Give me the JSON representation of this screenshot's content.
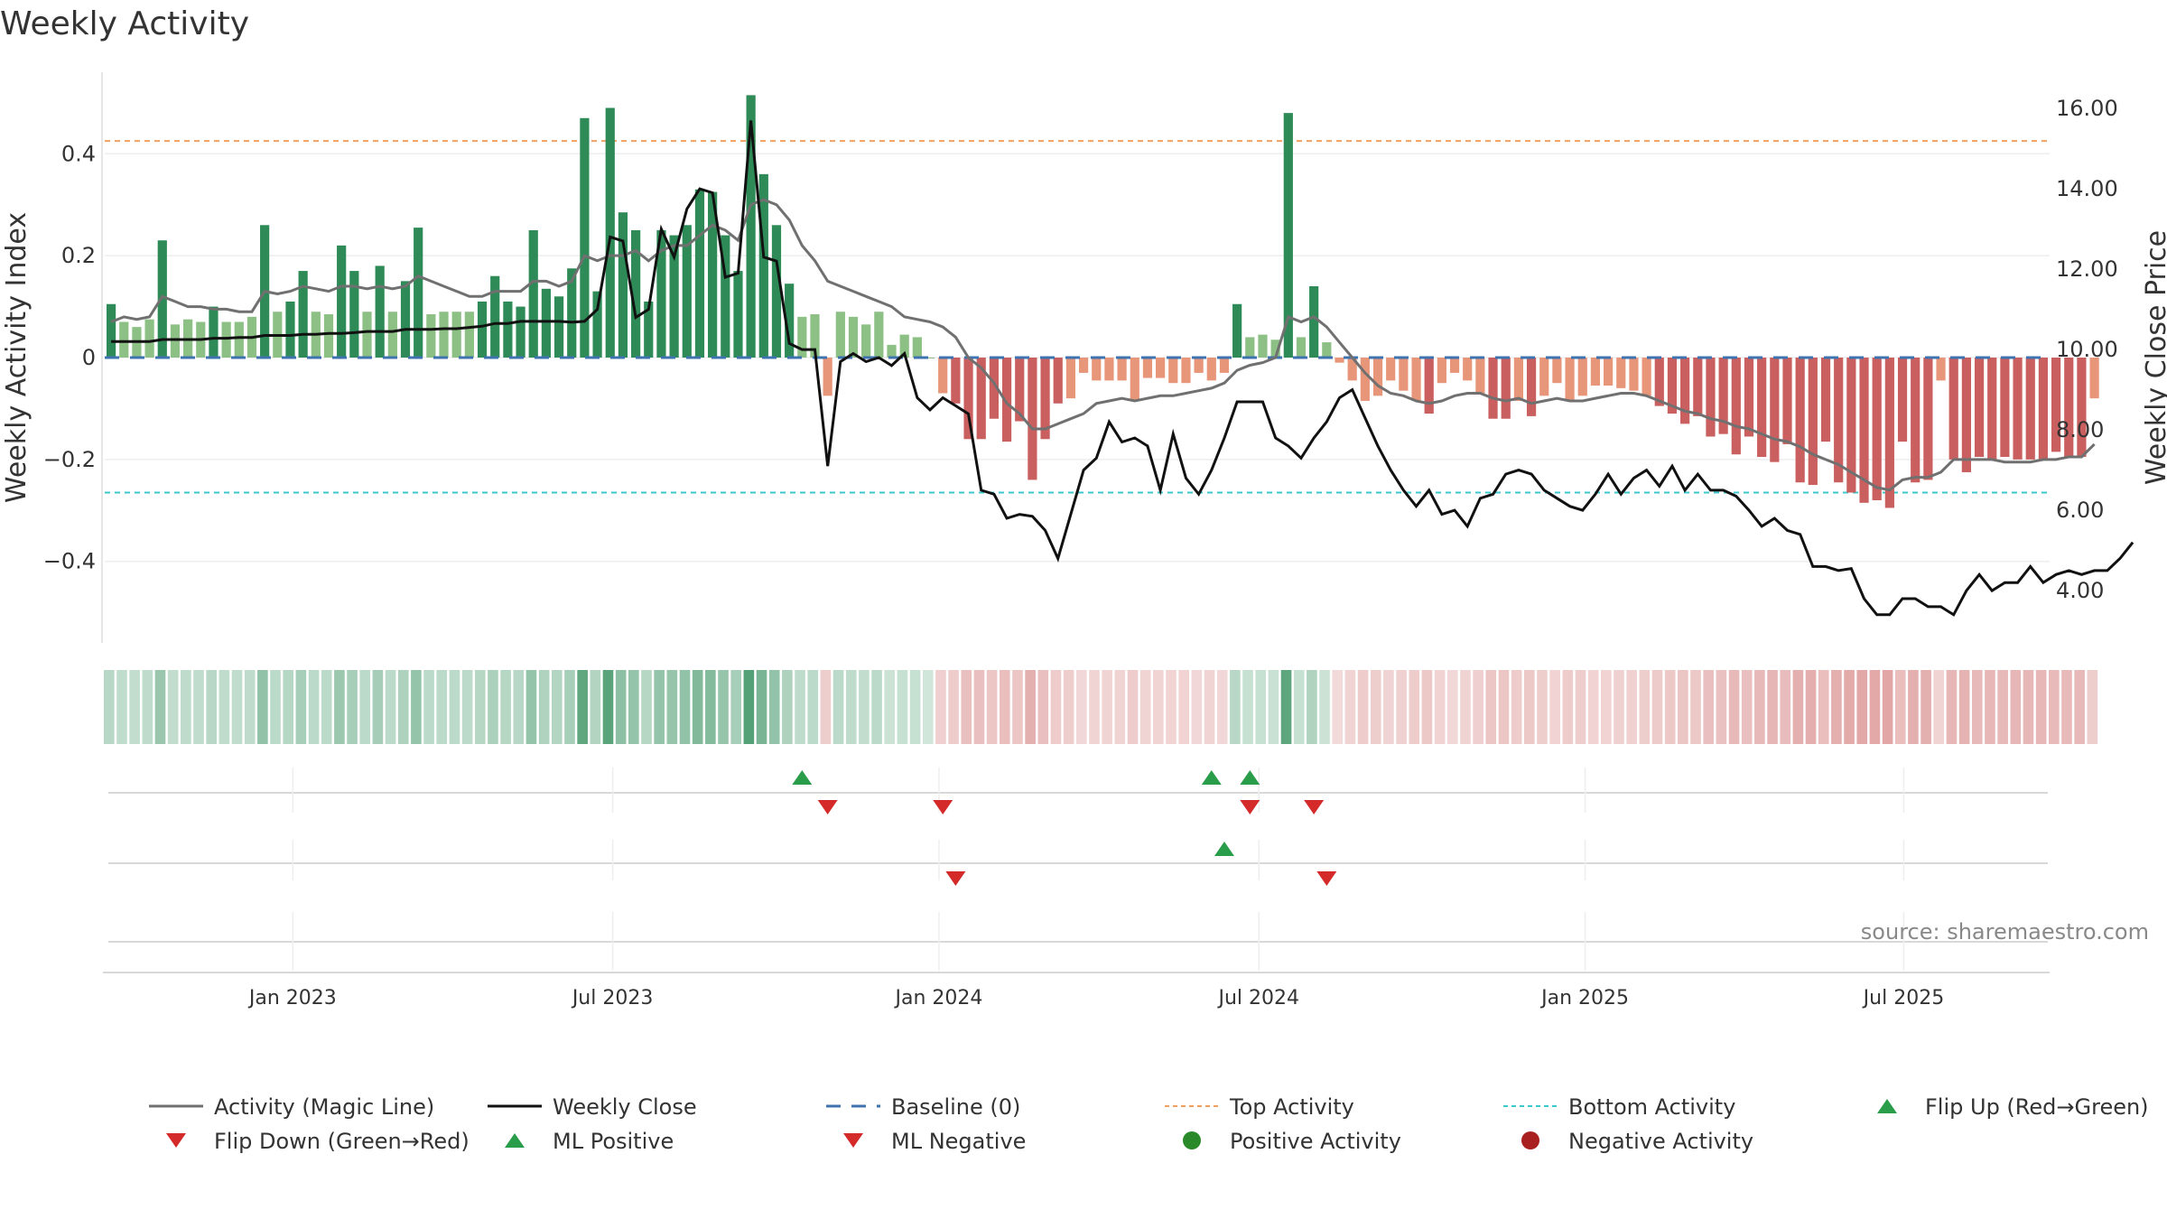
{
  "chart_data": {
    "type": "bar",
    "title": "Weekly Activity",
    "ylabel_left": "Weekly Activity Index",
    "ylabel_right": "Weekly Close Price",
    "left_axis": {
      "range": [
        -0.56,
        0.56
      ],
      "ticks": [
        0.4,
        0.2,
        0,
        -0.2,
        -0.4
      ],
      "tick_labels": [
        "0.4",
        "0.2",
        "0",
        "−0.2",
        "−0.4"
      ]
    },
    "right_axis": {
      "range": [
        2.7,
        16.9
      ],
      "ticks": [
        16,
        14,
        12,
        10,
        8,
        6,
        4
      ],
      "tick_labels": [
        "16.00",
        "14.00",
        "12.00",
        "10.00",
        "8.00",
        "6.00",
        "4.00"
      ]
    },
    "x_range": [
      0,
      151
    ],
    "x_ticks": [
      {
        "label": "Jan 2023",
        "week": 14.7
      },
      {
        "label": "Jul 2023",
        "week": 39.7
      },
      {
        "label": "Jan 2024",
        "week": 65.2
      },
      {
        "label": "Jul 2024",
        "week": 90.2
      },
      {
        "label": "Jan 2025",
        "week": 115.7
      },
      {
        "label": "Jul 2025",
        "week": 140.6
      }
    ],
    "reference_lines": {
      "baseline": 0,
      "top_activity": 0.425,
      "bottom_activity": -0.265
    },
    "activity_index": [
      0.105,
      0.07,
      0.06,
      0.075,
      0.23,
      0.065,
      0.075,
      0.07,
      0.1,
      0.07,
      0.07,
      0.08,
      0.26,
      0.09,
      0.11,
      0.17,
      0.09,
      0.085,
      0.22,
      0.17,
      0.09,
      0.18,
      0.09,
      0.15,
      0.255,
      0.085,
      0.09,
      0.09,
      0.09,
      0.11,
      0.16,
      0.11,
      0.1,
      0.25,
      0.135,
      0.12,
      0.175,
      0.47,
      0.13,
      0.49,
      0.285,
      0.25,
      0.11,
      0.25,
      0.24,
      0.26,
      0.33,
      0.325,
      0.24,
      0.17,
      0.515,
      0.36,
      0.26,
      0.145,
      0.08,
      0.085,
      -0.075,
      0.09,
      0.08,
      0.065,
      0.09,
      0.025,
      0.045,
      0.04,
      0.0,
      -0.07,
      -0.09,
      -0.16,
      -0.16,
      -0.12,
      -0.165,
      -0.125,
      -0.24,
      -0.16,
      -0.09,
      -0.08,
      -0.03,
      -0.045,
      -0.045,
      -0.045,
      -0.085,
      -0.04,
      -0.04,
      -0.05,
      -0.05,
      -0.03,
      -0.045,
      -0.03,
      0.105,
      0.04,
      0.045,
      0.035,
      0.48,
      0.04,
      0.14,
      0.03,
      -0.01,
      -0.045,
      -0.085,
      -0.075,
      -0.045,
      -0.065,
      -0.085,
      -0.11,
      -0.05,
      -0.03,
      -0.045,
      -0.07,
      -0.12,
      -0.12,
      -0.085,
      -0.115,
      -0.075,
      -0.05,
      -0.085,
      -0.075,
      -0.055,
      -0.055,
      -0.06,
      -0.065,
      -0.075,
      -0.095,
      -0.11,
      -0.13,
      -0.115,
      -0.155,
      -0.15,
      -0.19,
      -0.155,
      -0.195,
      -0.205,
      -0.17,
      -0.245,
      -0.25,
      -0.165,
      -0.245,
      -0.265,
      -0.285,
      -0.28,
      -0.295,
      -0.165,
      -0.245,
      -0.24,
      -0.045,
      -0.2,
      -0.225,
      -0.195,
      -0.2,
      -0.195,
      -0.2,
      -0.2,
      -0.2,
      -0.185,
      -0.195,
      -0.195,
      -0.08
    ],
    "magic_line": [
      0.07,
      0.08,
      0.075,
      0.08,
      0.12,
      0.11,
      0.1,
      0.1,
      0.095,
      0.095,
      0.09,
      0.09,
      0.13,
      0.125,
      0.13,
      0.14,
      0.135,
      0.13,
      0.14,
      0.14,
      0.135,
      0.14,
      0.135,
      0.14,
      0.16,
      0.15,
      0.14,
      0.13,
      0.12,
      0.12,
      0.13,
      0.13,
      0.13,
      0.15,
      0.15,
      0.14,
      0.15,
      0.2,
      0.19,
      0.2,
      0.2,
      0.21,
      0.19,
      0.21,
      0.22,
      0.22,
      0.24,
      0.26,
      0.25,
      0.23,
      0.3,
      0.31,
      0.3,
      0.27,
      0.22,
      0.19,
      0.15,
      0.14,
      0.13,
      0.12,
      0.11,
      0.1,
      0.08,
      0.075,
      0.07,
      0.06,
      0.04,
      0.0,
      -0.02,
      -0.05,
      -0.09,
      -0.11,
      -0.14,
      -0.14,
      -0.13,
      -0.12,
      -0.11,
      -0.09,
      -0.085,
      -0.08,
      -0.085,
      -0.08,
      -0.075,
      -0.075,
      -0.07,
      -0.065,
      -0.06,
      -0.05,
      -0.025,
      -0.015,
      -0.01,
      0.0,
      0.08,
      0.07,
      0.08,
      0.06,
      0.03,
      0.0,
      -0.03,
      -0.055,
      -0.07,
      -0.075,
      -0.085,
      -0.09,
      -0.085,
      -0.075,
      -0.07,
      -0.07,
      -0.08,
      -0.085,
      -0.08,
      -0.09,
      -0.085,
      -0.08,
      -0.085,
      -0.085,
      -0.08,
      -0.075,
      -0.07,
      -0.07,
      -0.075,
      -0.085,
      -0.095,
      -0.105,
      -0.11,
      -0.12,
      -0.125,
      -0.135,
      -0.14,
      -0.15,
      -0.16,
      -0.165,
      -0.175,
      -0.19,
      -0.2,
      -0.21,
      -0.225,
      -0.24,
      -0.255,
      -0.26,
      -0.24,
      -0.235,
      -0.235,
      -0.225,
      -0.2,
      -0.2,
      -0.2,
      -0.2,
      -0.205,
      -0.205,
      -0.205,
      -0.2,
      -0.2,
      -0.195,
      -0.195,
      -0.17
    ],
    "weekly_close": [
      10.2,
      10.2,
      10.2,
      10.2,
      10.25,
      10.25,
      10.25,
      10.25,
      10.28,
      10.28,
      10.3,
      10.3,
      10.35,
      10.35,
      10.35,
      10.38,
      10.38,
      10.4,
      10.4,
      10.42,
      10.45,
      10.45,
      10.45,
      10.5,
      10.5,
      10.5,
      10.52,
      10.52,
      10.55,
      10.58,
      10.65,
      10.65,
      10.7,
      10.7,
      10.7,
      10.7,
      10.68,
      10.7,
      11.0,
      12.8,
      12.7,
      10.8,
      11.0,
      13.0,
      12.3,
      13.5,
      14.0,
      13.9,
      11.8,
      11.9,
      15.7,
      12.3,
      12.2,
      10.15,
      10.0,
      10.0,
      7.1,
      9.7,
      9.9,
      9.7,
      9.8,
      9.6,
      9.9,
      8.8,
      8.5,
      8.8,
      8.6,
      8.4,
      6.5,
      6.4,
      5.8,
      5.9,
      5.85,
      5.5,
      4.8,
      5.9,
      7.0,
      7.3,
      8.2,
      7.7,
      7.8,
      7.6,
      6.5,
      7.9,
      6.8,
      6.4,
      7.0,
      7.8,
      8.7,
      8.7,
      8.7,
      7.8,
      7.6,
      7.3,
      7.8,
      8.2,
      8.8,
      9.0,
      8.3,
      7.6,
      7.0,
      6.5,
      6.1,
      6.5,
      5.9,
      6.0,
      5.6,
      6.3,
      6.4,
      6.9,
      7.0,
      6.9,
      6.5,
      6.3,
      6.1,
      6.0,
      6.4,
      6.9,
      6.4,
      6.8,
      7.0,
      6.6,
      7.1,
      6.5,
      6.9,
      6.5,
      6.5,
      6.35,
      6.0,
      5.6,
      5.8,
      5.5,
      5.4,
      4.6,
      4.6,
      4.5,
      4.55,
      3.8,
      3.4,
      3.4,
      3.8,
      3.8,
      3.6,
      3.6,
      3.4,
      4.0,
      4.4,
      4.0,
      4.2,
      4.2,
      4.6,
      4.2,
      4.4,
      4.5,
      4.4,
      4.5,
      4.5,
      4.8,
      5.2
    ],
    "flip_up": [
      54,
      86,
      89
    ],
    "flip_down": [
      56,
      65,
      89,
      94
    ],
    "ml_positive": [
      87
    ],
    "ml_negative": [
      66,
      95
    ],
    "legend": [
      "Activity (Magic Line)",
      "Weekly Close",
      "Baseline (0)",
      "Top Activity",
      "Bottom Activity",
      "Flip Up (Red→Green)",
      "Flip Down (Green→Red)",
      "ML Positive",
      "ML Negative",
      "Positive Activity",
      "Negative Activity"
    ],
    "source": "source: sharemaestro.com",
    "colors": {
      "pos_strong": "#2e8b57",
      "pos_light": "#8cc084",
      "neg_strong": "#c9605f",
      "neg_light": "#e8967a",
      "magic_line": "#707070",
      "close_line": "#111111",
      "baseline": "#3f73b0",
      "top": "#f0a060",
      "bottom": "#3cc8cc",
      "up_marker": "#2a9d4a",
      "down_marker": "#d42a2a",
      "pos_dot": "#2a8a2a",
      "neg_dot": "#a82020"
    }
  }
}
